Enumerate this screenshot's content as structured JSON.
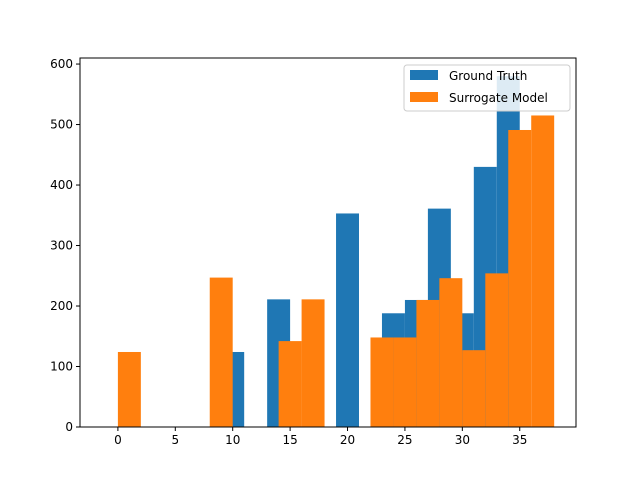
{
  "chart_data": {
    "type": "bar",
    "bin_width": 2,
    "xlim": [
      -3.3,
      39.9
    ],
    "ylim": [
      0,
      610
    ],
    "xticks": [
      0,
      5,
      10,
      15,
      20,
      25,
      30,
      35
    ],
    "yticks": [
      0,
      100,
      200,
      300,
      400,
      500,
      600
    ],
    "grid": false,
    "legend_position": "top-right",
    "series": [
      {
        "name": "Ground Truth",
        "color": "#1f77b4",
        "bins": [
          {
            "x": 9,
            "y": 124
          },
          {
            "x": 13,
            "y": 211
          },
          {
            "x": 19,
            "y": 353
          },
          {
            "x": 23,
            "y": 188
          },
          {
            "x": 25,
            "y": 210
          },
          {
            "x": 27,
            "y": 361
          },
          {
            "x": 29,
            "y": 188
          },
          {
            "x": 31,
            "y": 430
          },
          {
            "x": 33,
            "y": 580
          }
        ]
      },
      {
        "name": "Surrogate Model",
        "color": "#ff7f0e",
        "bins": [
          {
            "x": 0,
            "y": 124
          },
          {
            "x": 8,
            "y": 247
          },
          {
            "x": 14,
            "y": 142
          },
          {
            "x": 16,
            "y": 211
          },
          {
            "x": 22,
            "y": 148
          },
          {
            "x": 24,
            "y": 148
          },
          {
            "x": 26,
            "y": 210
          },
          {
            "x": 28,
            "y": 246
          },
          {
            "x": 30,
            "y": 127
          },
          {
            "x": 32,
            "y": 254
          },
          {
            "x": 34,
            "y": 491
          },
          {
            "x": 36,
            "y": 515
          }
        ]
      }
    ]
  }
}
